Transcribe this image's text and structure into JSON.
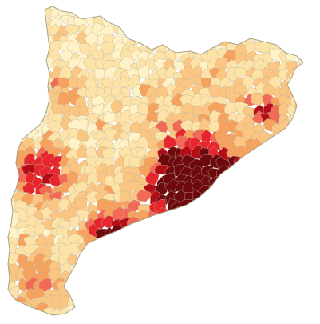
{
  "map": {
    "region": "Catalonia",
    "kind": "choropleth",
    "background": "#ffffff",
    "border_color": "#b9b29a",
    "palette": [
      {
        "class": 1,
        "color": "#fff2c6"
      },
      {
        "class": 2,
        "color": "#fde3a8"
      },
      {
        "class": 3,
        "color": "#fbc582"
      },
      {
        "class": 4,
        "color": "#f7a15e"
      },
      {
        "class": 5,
        "color": "#f26a55"
      },
      {
        "class": 6,
        "color": "#e8242c"
      },
      {
        "class": 7,
        "color": "#b50d18"
      },
      {
        "class": 8,
        "color": "#6e0a0e"
      }
    ]
  }
}
